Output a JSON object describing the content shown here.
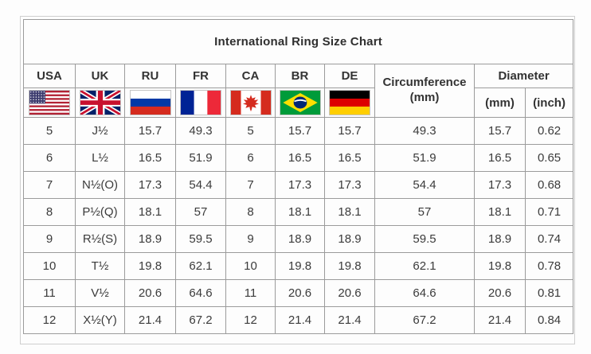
{
  "title": "International Ring Size Chart",
  "header": {
    "countries": [
      {
        "label": "USA",
        "flag_icon": "usa-flag"
      },
      {
        "label": "UK",
        "flag_icon": "uk-flag"
      },
      {
        "label": "RU",
        "flag_icon": "russia-flag"
      },
      {
        "label": "FR",
        "flag_icon": "france-flag"
      },
      {
        "label": "CA",
        "flag_icon": "canada-flag"
      },
      {
        "label": "BR",
        "flag_icon": "brazil-flag"
      },
      {
        "label": "DE",
        "flag_icon": "germany-flag"
      }
    ],
    "circumference": {
      "label": "Circumference",
      "unit": "(mm)"
    },
    "diameter": {
      "label": "Diameter",
      "units": [
        "(mm)",
        "(inch)"
      ]
    }
  },
  "chart_data": {
    "type": "table",
    "title": "International Ring Size Chart",
    "columns": [
      "USA",
      "UK",
      "RU",
      "FR",
      "CA",
      "BR",
      "DE",
      "Circumference (mm)",
      "Diameter (mm)",
      "Diameter (inch)"
    ],
    "rows": [
      [
        "5",
        "J½",
        "15.7",
        "49.3",
        "5",
        "15.7",
        "15.7",
        "49.3",
        "15.7",
        "0.62"
      ],
      [
        "6",
        "L½",
        "16.5",
        "51.9",
        "6",
        "16.5",
        "16.5",
        "51.9",
        "16.5",
        "0.65"
      ],
      [
        "7",
        "N½(O)",
        "17.3",
        "54.4",
        "7",
        "17.3",
        "17.3",
        "54.4",
        "17.3",
        "0.68"
      ],
      [
        "8",
        "P½(Q)",
        "18.1",
        "57",
        "8",
        "18.1",
        "18.1",
        "57",
        "18.1",
        "0.71"
      ],
      [
        "9",
        "R½(S)",
        "18.9",
        "59.5",
        "9",
        "18.9",
        "18.9",
        "59.5",
        "18.9",
        "0.74"
      ],
      [
        "10",
        "T½",
        "19.8",
        "62.1",
        "10",
        "19.8",
        "19.8",
        "62.1",
        "19.8",
        "0.78"
      ],
      [
        "11",
        "V½",
        "20.6",
        "64.6",
        "11",
        "20.6",
        "20.6",
        "64.6",
        "20.6",
        "0.81"
      ],
      [
        "12",
        "X½(Y)",
        "21.4",
        "67.2",
        "12",
        "21.4",
        "21.4",
        "67.2",
        "21.4",
        "0.84"
      ]
    ]
  },
  "colors": {
    "page_background": "#fdfdfd",
    "table_border": "#9b9b9b",
    "outer_frame_border": "#cfcfcf",
    "text": "#3b3b3b"
  }
}
